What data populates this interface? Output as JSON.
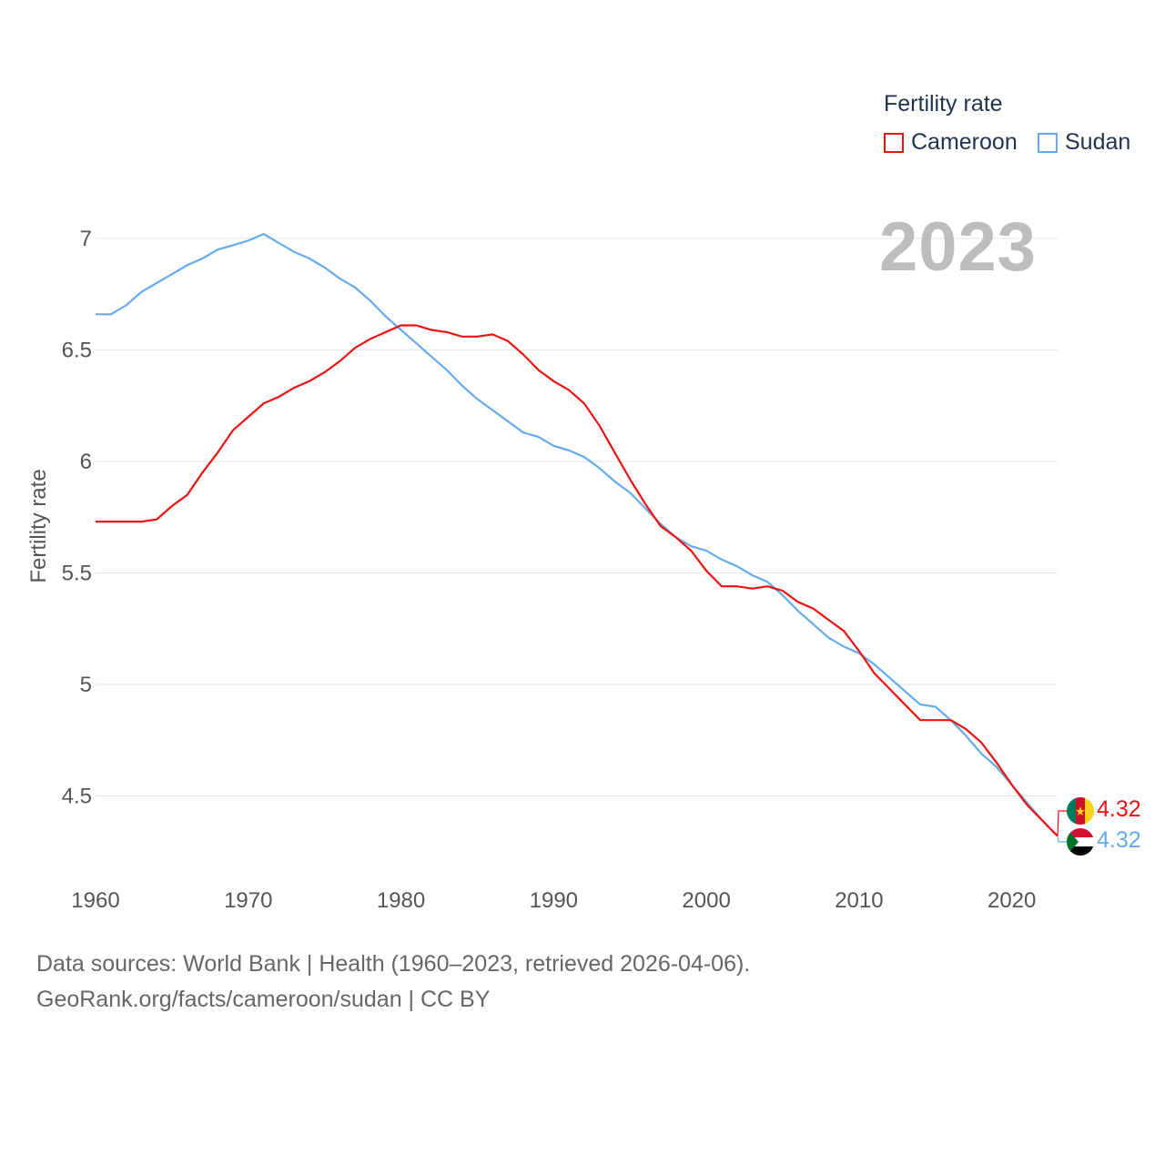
{
  "legend": {
    "title": "Fertility rate",
    "series": [
      {
        "name": "Cameroon",
        "color": "#ee1111"
      },
      {
        "name": "Sudan",
        "color": "#66aaee"
      }
    ]
  },
  "current_year": "2023",
  "footer": {
    "line1": "Data sources: World Bank | Health (1960–2023, retrieved 2026-04-06).",
    "line2": "GeoRank.org/facts/cameroon/sudan | CC BY"
  },
  "end_labels": {
    "cameroon": "4.32",
    "sudan": "4.32"
  },
  "chart_data": {
    "type": "line",
    "title": "",
    "xlabel": "",
    "ylabel": "Fertility rate",
    "xlim": [
      1960,
      2023
    ],
    "ylim": [
      4.2,
      7.2
    ],
    "x_ticks": [
      "1960",
      "1970",
      "1980",
      "1990",
      "2000",
      "2010",
      "2020"
    ],
    "y_ticks": [
      "4.5",
      "5",
      "5.5",
      "6",
      "6.5",
      "7"
    ],
    "grid": true,
    "x": [
      1960,
      1961,
      1962,
      1963,
      1964,
      1965,
      1966,
      1967,
      1968,
      1969,
      1970,
      1971,
      1972,
      1973,
      1974,
      1975,
      1976,
      1977,
      1978,
      1979,
      1980,
      1981,
      1982,
      1983,
      1984,
      1985,
      1986,
      1987,
      1988,
      1989,
      1990,
      1991,
      1992,
      1993,
      1994,
      1995,
      1996,
      1997,
      1998,
      1999,
      2000,
      2001,
      2002,
      2003,
      2004,
      2005,
      2006,
      2007,
      2008,
      2009,
      2010,
      2011,
      2012,
      2013,
      2014,
      2015,
      2016,
      2017,
      2018,
      2019,
      2020,
      2021,
      2022,
      2023
    ],
    "series": [
      {
        "name": "Cameroon",
        "color": "#ee1111",
        "values": [
          5.73,
          5.73,
          5.73,
          5.73,
          5.74,
          5.8,
          5.85,
          5.95,
          6.04,
          6.14,
          6.2,
          6.26,
          6.29,
          6.33,
          6.36,
          6.4,
          6.45,
          6.51,
          6.55,
          6.58,
          6.61,
          6.61,
          6.59,
          6.58,
          6.56,
          6.56,
          6.57,
          6.54,
          6.48,
          6.41,
          6.36,
          6.32,
          6.26,
          6.16,
          6.04,
          5.92,
          5.81,
          5.71,
          5.66,
          5.6,
          5.51,
          5.44,
          5.44,
          5.43,
          5.44,
          5.42,
          5.37,
          5.34,
          5.29,
          5.24,
          5.15,
          5.05,
          4.98,
          4.91,
          4.84,
          4.84,
          4.84,
          4.8,
          4.74,
          4.65,
          4.55,
          4.46,
          4.39,
          4.32
        ]
      },
      {
        "name": "Sudan",
        "color": "#66aaee",
        "values": [
          6.66,
          6.66,
          6.7,
          6.76,
          6.8,
          6.84,
          6.88,
          6.91,
          6.95,
          6.97,
          6.99,
          7.02,
          6.98,
          6.94,
          6.91,
          6.87,
          6.82,
          6.78,
          6.72,
          6.65,
          6.59,
          6.53,
          6.47,
          6.41,
          6.34,
          6.28,
          6.23,
          6.18,
          6.13,
          6.11,
          6.07,
          6.05,
          6.02,
          5.97,
          5.91,
          5.86,
          5.79,
          5.72,
          5.66,
          5.62,
          5.6,
          5.56,
          5.53,
          5.49,
          5.46,
          5.4,
          5.33,
          5.27,
          5.21,
          5.17,
          5.14,
          5.09,
          5.03,
          4.97,
          4.91,
          4.9,
          4.84,
          4.77,
          4.69,
          4.63,
          4.55,
          4.47,
          4.39,
          4.32
        ]
      }
    ]
  }
}
